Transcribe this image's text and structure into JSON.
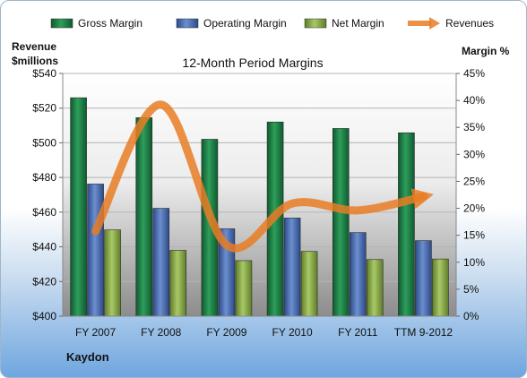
{
  "chart_data": {
    "type": "bar",
    "title": "12-Month Period Margins",
    "company": "Kaydon",
    "categories": [
      "FY 2007",
      "FY 2008",
      "FY 2009",
      "FY 2010",
      "FY 2011",
      "TTM 9-2012"
    ],
    "left_axis": {
      "title_line1": "Revenue",
      "title_line2": "$millions",
      "range": [
        400,
        540
      ],
      "tick_step": 20,
      "tick_prefix": "$"
    },
    "right_axis": {
      "title": "Margin %",
      "range": [
        0,
        45
      ],
      "tick_step": 5,
      "tick_suffix": "%"
    },
    "legend_position": "top",
    "series": [
      {
        "name": "Gross Margin",
        "kind": "bar",
        "axis": "right",
        "color": "#1e8449",
        "values": [
          40.5,
          36.8,
          32.8,
          36.0,
          34.8,
          34.0
        ]
      },
      {
        "name": "Operating Margin",
        "kind": "bar",
        "axis": "right",
        "color": "#4a6fb5",
        "values": [
          24.5,
          20.0,
          16.2,
          18.2,
          15.5,
          14.0
        ]
      },
      {
        "name": "Net Margin",
        "kind": "bar",
        "axis": "right",
        "color": "#8fb548",
        "values": [
          16.0,
          12.2,
          10.3,
          12.0,
          10.5,
          10.6
        ]
      },
      {
        "name": "Revenues",
        "kind": "line",
        "axis": "left",
        "color": "#e87d24",
        "values": [
          449,
          522,
          441,
          465,
          461,
          469
        ]
      }
    ]
  }
}
